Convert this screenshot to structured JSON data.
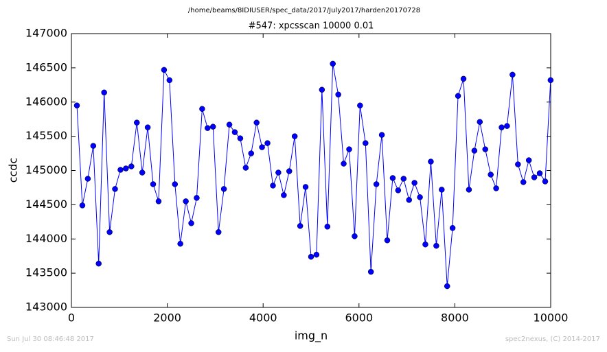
{
  "chart_data": {
    "type": "line",
    "suptitle": "/home/beams/8IDIUSER/spec_data/2017/July2017/harden20170728",
    "title": "#547: xpcsscan 10000 0.01",
    "xlabel": "img_n",
    "ylabel": "ccdc",
    "footer_left": "Sun Jul 30 08:46:48 2017",
    "footer_right": "spec2nexus, (C) 2014-2017",
    "x": [
      115,
      229,
      342,
      456,
      569,
      683,
      797,
      910,
      1024,
      1137,
      1251,
      1365,
      1478,
      1592,
      1705,
      1819,
      1933,
      2046,
      2160,
      2273,
      2387,
      2501,
      2614,
      2728,
      2841,
      2955,
      3069,
      3182,
      3296,
      3409,
      3523,
      3637,
      3750,
      3864,
      3977,
      4091,
      4205,
      4318,
      4432,
      4545,
      4659,
      4773,
      4886,
      5000,
      5113,
      5227,
      5341,
      5454,
      5568,
      5681,
      5795,
      5909,
      6022,
      6136,
      6249,
      6363,
      6477,
      6590,
      6704,
      6817,
      6931,
      7045,
      7158,
      7272,
      7385,
      7499,
      7613,
      7726,
      7840,
      7953,
      8067,
      8181,
      8294,
      8408,
      8521,
      8635,
      8749,
      8862,
      8976,
      9089,
      9203,
      9317,
      9430,
      9544,
      9657,
      9771,
      9885,
      9998
    ],
    "series": [
      {
        "color": "#0000ff",
        "values": [
          145950,
          144490,
          144880,
          145360,
          143640,
          146140,
          144100,
          144730,
          145010,
          145030,
          145060,
          145700,
          144970,
          145630,
          144800,
          144550,
          146470,
          146320,
          144800,
          143930,
          144550,
          144230,
          144600,
          145900,
          145620,
          145640,
          144100,
          144730,
          145670,
          145560,
          145470,
          145040,
          145250,
          145700,
          145340,
          145400,
          144780,
          144970,
          144640,
          144990,
          145500,
          144190,
          144760,
          143740,
          143770,
          146180,
          144180,
          146560,
          146110,
          145100,
          145310,
          144040,
          145950,
          145400,
          143520,
          144800,
          145520,
          143980,
          144890,
          144710,
          144880,
          144570,
          144820,
          144610,
          143920,
          145130,
          143900,
          144720,
          143310,
          144160,
          146090,
          146340,
          144720,
          145290,
          145710,
          145310,
          144940,
          144740,
          145630,
          145650,
          146400,
          145090,
          144830,
          145150,
          144900,
          144960,
          144840,
          146320
        ]
      }
    ],
    "xlim": [
      0,
      10000
    ],
    "xticks": [
      0,
      2000,
      4000,
      6000,
      8000,
      10000
    ],
    "ylim": [
      143000,
      147000
    ],
    "yticks": [
      143000,
      143500,
      144000,
      144500,
      145000,
      145500,
      146000,
      146500,
      147000
    ],
    "grid": false
  }
}
